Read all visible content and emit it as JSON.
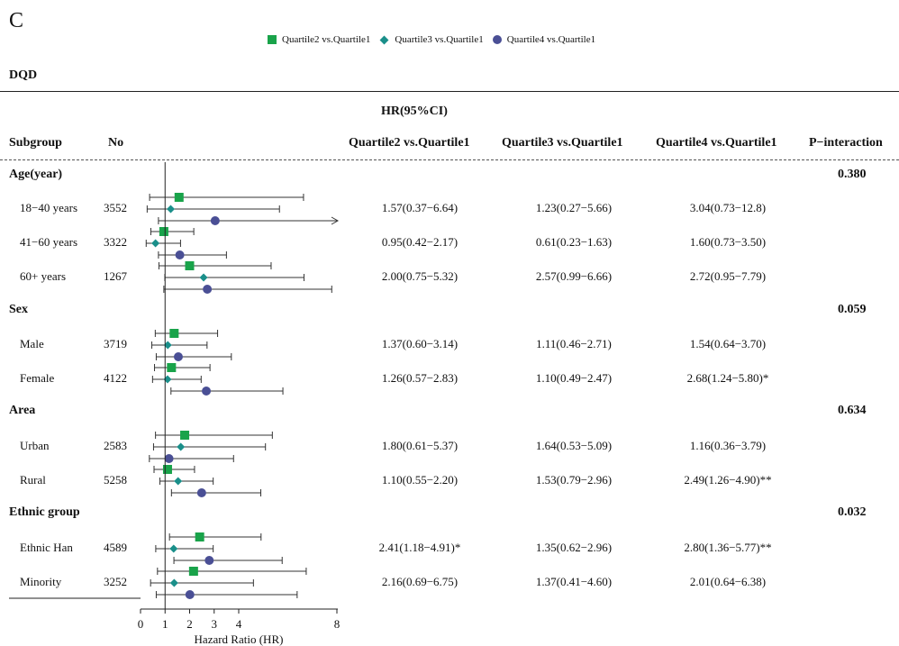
{
  "panel_label": "C",
  "dataset_label": "DQD",
  "hr_header": "HR(95%CI)",
  "columns": {
    "subgroup": "Subgroup",
    "no": "No",
    "q2": "Quartile2 vs.Quartile1",
    "q3": "Quartile3 vs.Quartile1",
    "q4": "Quartile4 vs.Quartile1",
    "p": "P−interaction"
  },
  "colors": {
    "q2": "#19a34a",
    "q3": "#1a8f8a",
    "q4": "#4a4f95"
  },
  "chart_data": {
    "type": "forest",
    "title": "",
    "xlabel": "Hazard Ratio (HR)",
    "xlim": [
      0,
      8
    ],
    "xticks": [
      0,
      1,
      2,
      3,
      4,
      8
    ],
    "reference_line": 1,
    "legend": [
      "Quartile2 vs.Quartile1",
      "Quartile3 vs.Quartile1",
      "Quartile4 vs.Quartile1"
    ],
    "legend_position": "top",
    "groups": [
      {
        "name": "Age(year)",
        "p_interaction": "0.380",
        "rows": [
          {
            "label": "18−40 years",
            "n": "3552",
            "hr": [
              1.57,
              1.23,
              3.04
            ],
            "lo": [
              0.37,
              0.27,
              0.73
            ],
            "hi": [
              6.64,
              5.66,
              12.8
            ],
            "text": [
              "1.57(0.37−6.64)",
              "1.23(0.27−5.66)",
              "3.04(0.73−12.8)"
            ]
          },
          {
            "label": "41−60 years",
            "n": "3322",
            "hr": [
              0.95,
              0.61,
              1.6
            ],
            "lo": [
              0.42,
              0.23,
              0.73
            ],
            "hi": [
              2.17,
              1.63,
              3.5
            ],
            "text": [
              "0.95(0.42−2.17)",
              "0.61(0.23−1.63)",
              "1.60(0.73−3.50)"
            ]
          },
          {
            "label": "60+ years",
            "n": "1267",
            "hr": [
              2.0,
              2.57,
              2.72
            ],
            "lo": [
              0.75,
              0.99,
              0.95
            ],
            "hi": [
              5.32,
              6.66,
              7.79
            ],
            "text": [
              "2.00(0.75−5.32)",
              "2.57(0.99−6.66)",
              "2.72(0.95−7.79)"
            ]
          }
        ]
      },
      {
        "name": "Sex",
        "p_interaction": "0.059",
        "rows": [
          {
            "label": "Male",
            "n": "3719",
            "hr": [
              1.37,
              1.11,
              1.54
            ],
            "lo": [
              0.6,
              0.46,
              0.64
            ],
            "hi": [
              3.14,
              2.71,
              3.7
            ],
            "text": [
              "1.37(0.60−3.14)",
              "1.11(0.46−2.71)",
              "1.54(0.64−3.70)"
            ]
          },
          {
            "label": "Female",
            "n": "4122",
            "hr": [
              1.26,
              1.1,
              2.68
            ],
            "lo": [
              0.57,
              0.49,
              1.24
            ],
            "hi": [
              2.83,
              2.47,
              5.8
            ],
            "text": [
              "1.26(0.57−2.83)",
              "1.10(0.49−2.47)",
              "2.68(1.24−5.80)*"
            ]
          }
        ]
      },
      {
        "name": "Area",
        "p_interaction": "0.634",
        "rows": [
          {
            "label": "Urban",
            "n": "2583",
            "hr": [
              1.8,
              1.64,
              1.16
            ],
            "lo": [
              0.61,
              0.53,
              0.36
            ],
            "hi": [
              5.37,
              5.09,
              3.79
            ],
            "text": [
              "1.80(0.61−5.37)",
              "1.64(0.53−5.09)",
              "1.16(0.36−3.79)"
            ]
          },
          {
            "label": "Rural",
            "n": "5258",
            "hr": [
              1.1,
              1.53,
              2.49
            ],
            "lo": [
              0.55,
              0.79,
              1.26
            ],
            "hi": [
              2.2,
              2.96,
              4.9
            ],
            "text": [
              "1.10(0.55−2.20)",
              "1.53(0.79−2.96)",
              "2.49(1.26−4.90)**"
            ]
          }
        ]
      },
      {
        "name": "Ethnic group",
        "p_interaction": "0.032",
        "rows": [
          {
            "label": "Ethnic Han",
            "n": "4589",
            "hr": [
              2.41,
              1.35,
              2.8
            ],
            "lo": [
              1.18,
              0.62,
              1.36
            ],
            "hi": [
              4.91,
              2.96,
              5.77
            ],
            "text": [
              "2.41(1.18−4.91)*",
              "1.35(0.62−2.96)",
              "2.80(1.36−5.77)**"
            ]
          },
          {
            "label": "Minority",
            "n": "3252",
            "hr": [
              2.16,
              1.37,
              2.01
            ],
            "lo": [
              0.69,
              0.41,
              0.64
            ],
            "hi": [
              6.75,
              4.6,
              6.38
            ],
            "text": [
              "2.16(0.69−6.75)",
              "1.37(0.41−4.60)",
              "2.01(0.64−6.38)"
            ]
          }
        ]
      }
    ]
  }
}
